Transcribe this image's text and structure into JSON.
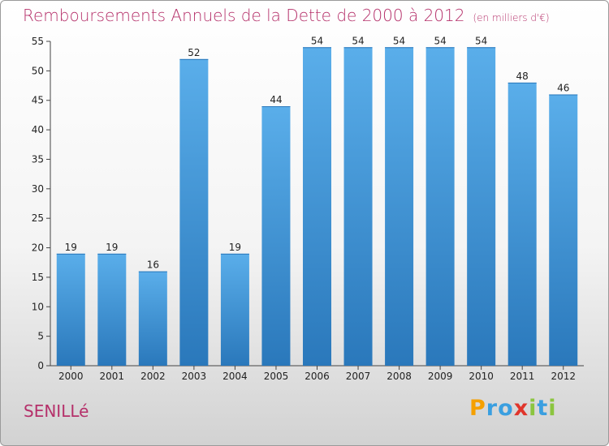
{
  "header": {
    "title": "Remboursements Annuels de la Dette de 2000 à 2012",
    "subtitle": "(en milliers d'€)"
  },
  "footer": {
    "commune": "SENILLé",
    "logo_letters": [
      "P",
      "r",
      "o",
      "x",
      "i",
      "t",
      "i"
    ],
    "logo_colors": [
      "#f5a000",
      "#3a9fe0",
      "#3a9fe0",
      "#e0352b",
      "#8bc53f",
      "#3a9fe0",
      "#8bc53f"
    ]
  },
  "chart_data": {
    "type": "bar",
    "categories": [
      "2000",
      "2001",
      "2002",
      "2003",
      "2004",
      "2005",
      "2006",
      "2007",
      "2008",
      "2009",
      "2010",
      "2011",
      "2012"
    ],
    "values": [
      19,
      19,
      16,
      52,
      19,
      44,
      54,
      54,
      54,
      54,
      54,
      48,
      46
    ],
    "title": "Remboursements Annuels de la Dette de 2000 à 2012",
    "xlabel": "",
    "ylabel": "",
    "ylim": [
      0,
      55
    ],
    "yticks": [
      0,
      5,
      10,
      15,
      20,
      25,
      30,
      35,
      40,
      45,
      50,
      55
    ],
    "grid": false,
    "bar_color": "#3b8fd6",
    "bar_color_light": "#5aaeea",
    "bar_color_dark": "#2a78bb"
  }
}
